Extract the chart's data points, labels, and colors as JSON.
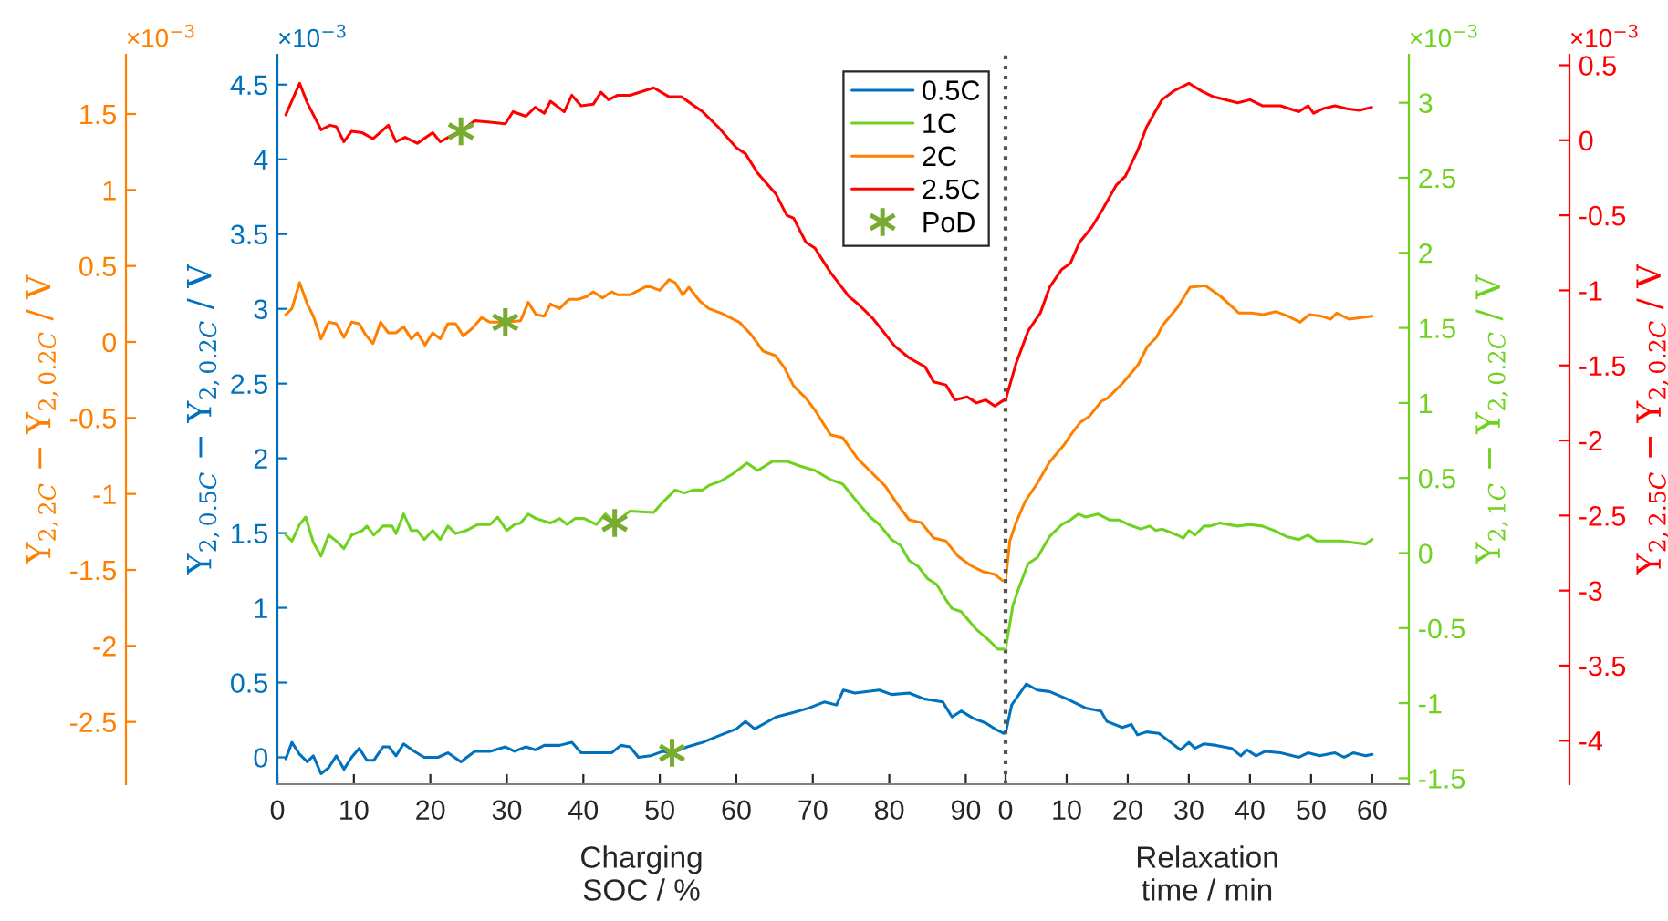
{
  "chart_data": [
    {
      "type": "line",
      "xlabel": "Charging\nSOC / %",
      "xlim": [
        0,
        95.2
      ],
      "xticks": [
        0,
        10,
        20,
        30,
        40,
        50,
        60,
        70,
        80,
        90
      ],
      "ylabel": "Y$_{2,0.5C}$ − Y$_{2,0.2C}$ / V",
      "ylim": [
        -0.18,
        4.7
      ],
      "yticks": [
        0,
        0.5,
        1,
        1.5,
        2,
        2.5,
        3,
        3.5,
        4,
        4.5
      ],
      "y2label": "Y$_{2,2C}$ − Y$_{2,0.2C}$ / V",
      "y2lim": [
        -2.91,
        1.89
      ],
      "y2ticks": [
        -2.5,
        -2,
        -1.5,
        -1,
        -0.5,
        0,
        0.5,
        1,
        1.5
      ],
      "line_style": "solid",
      "legend": "top right",
      "annotations": [
        "×10$^{−3}$",
        "×10$^{−3}$"
      ],
      "series": [
        {
          "name": "0.5C",
          "color": "#0072bd",
          "x": [
            1.1,
            1.9,
            2.9,
            3.9,
            4.7,
            5.7,
            6.7,
            7.7,
            8.7,
            9.7,
            10.7,
            11.7,
            12.6,
            13.8,
            14.6,
            15.5,
            16.5,
            17.9,
            19.2,
            21,
            22.3,
            24,
            25.8,
            27.8,
            29.8,
            31,
            32.5,
            33.7,
            34.9,
            36.9,
            38.5,
            39.7,
            41.7,
            43.7,
            44.9,
            46.1,
            47.2,
            48.8,
            50.4,
            51.6,
            53.6,
            55.6,
            58,
            60,
            61.2,
            62.4,
            65.2,
            67.5,
            69.5,
            71.5,
            73.1,
            74,
            75.5,
            78.7,
            80.3,
            82.6,
            84.6,
            87,
            88.2,
            89.4,
            91,
            92.6,
            93.8,
            95
          ],
          "values": [
            -0.01,
            0.1,
            0.02,
            -0.03,
            0.01,
            -0.11,
            -0.07,
            0.01,
            -0.08,
            0,
            0.06,
            -0.02,
            -0.02,
            0.07,
            0.07,
            0.01,
            0.09,
            0.04,
            0,
            0,
            0.03,
            -0.03,
            0.04,
            0.04,
            0.07,
            0.04,
            0.07,
            0.05,
            0.08,
            0.08,
            0.1,
            0.03,
            0.03,
            0.03,
            0.08,
            0.07,
            0,
            0.01,
            0.04,
            0.03,
            0.07,
            0.1,
            0.15,
            0.19,
            0.24,
            0.19,
            0.27,
            0.3,
            0.33,
            0.37,
            0.35,
            0.45,
            0.43,
            0.45,
            0.42,
            0.43,
            0.39,
            0.37,
            0.27,
            0.31,
            0.26,
            0.23,
            0.19,
            0.16
          ]
        },
        {
          "name": "2C",
          "color": "#ff8000",
          "axis": "y2",
          "x": [
            1.1,
            1.9,
            2.9,
            3.9,
            4.7,
            5.7,
            6.7,
            7.7,
            8.7,
            9.7,
            10.7,
            11.5,
            12.5,
            13.5,
            14.5,
            15.5,
            16.5,
            17.5,
            18.3,
            19.3,
            20.3,
            21.3,
            22.3,
            23.3,
            24.3,
            25.5,
            26.7,
            27.8,
            29.8,
            31.8,
            32.8,
            33.8,
            34.9,
            35.7,
            36.9,
            38.1,
            39.3,
            40.5,
            41.3,
            42.5,
            43.7,
            44.5,
            46.1,
            48.4,
            50,
            51.2,
            52,
            53,
            53.8,
            55.2,
            56.4,
            58,
            60.4,
            61.9,
            63.5,
            65.1,
            66.3,
            67.5,
            69.1,
            70.3,
            72.3,
            73.9,
            75.9,
            77.9,
            79.5,
            81.1,
            82.6,
            84.2,
            85.8,
            87.4,
            89,
            90.6,
            92.2,
            93.8,
            94.8
          ],
          "values": [
            0.18,
            0.22,
            0.39,
            0.25,
            0.17,
            0.02,
            0.13,
            0.12,
            0.03,
            0.13,
            0.12,
            0.05,
            -0.01,
            0.13,
            0.06,
            0.06,
            0.1,
            0.02,
            0.06,
            -0.02,
            0.06,
            0.02,
            0.12,
            0.12,
            0.04,
            0.09,
            0.16,
            0.13,
            0.13,
            0.14,
            0.26,
            0.18,
            0.17,
            0.25,
            0.22,
            0.28,
            0.28,
            0.3,
            0.33,
            0.29,
            0.33,
            0.31,
            0.31,
            0.37,
            0.34,
            0.41,
            0.39,
            0.31,
            0.36,
            0.27,
            0.22,
            0.19,
            0.13,
            0.05,
            -0.06,
            -0.09,
            -0.17,
            -0.29,
            -0.37,
            -0.45,
            -0.61,
            -0.63,
            -0.77,
            -0.87,
            -0.95,
            -1.07,
            -1.17,
            -1.19,
            -1.29,
            -1.31,
            -1.41,
            -1.47,
            -1.51,
            -1.53,
            -1.57
          ]
        },
        {
          "type": "scatter",
          "marker": "cross",
          "color": "#77ac30",
          "x": [
            51.6
          ],
          "values": [
            0.03
          ]
        },
        {
          "type": "scatter",
          "marker": "cross",
          "color": "#77ac30",
          "axis": "y2",
          "x": [
            29.8
          ],
          "values": [
            0.13
          ]
        }
      ]
    },
    {
      "type": "line",
      "xlim": [
        0,
        95.2
      ],
      "ylim": [
        -1.54,
        3.32
      ],
      "y2lim": [
        -4.29,
        0.57
      ],
      "tick_labels": false,
      "line_style": "solid",
      "legend": "top right",
      "series": [
        {
          "name": "1C",
          "color": "#6fd21f",
          "x": [
            1.1,
            1.9,
            2.9,
            3.7,
            4.7,
            5.7,
            6.7,
            7.7,
            8.7,
            9.7,
            11.1,
            11.7,
            12.6,
            13.8,
            15,
            15.5,
            16.5,
            17.5,
            18.3,
            19.2,
            20.3,
            21.3,
            22.3,
            23.3,
            24.7,
            26.2,
            27.8,
            28.8,
            30,
            31,
            31.8,
            32.8,
            33.8,
            35.7,
            36.9,
            37.9,
            38.9,
            40.1,
            41.7,
            42.9,
            44.1,
            46.1,
            49.2,
            50.4,
            52,
            53.2,
            54.4,
            55.6,
            56.4,
            58,
            59.6,
            61.4,
            62.8,
            64.7,
            66.7,
            68.3,
            70.3,
            72.3,
            73.9,
            75.5,
            77.5,
            78.7,
            80.3,
            81.5,
            82.6,
            83.8,
            85,
            86.2,
            87.4,
            88.2,
            89.4,
            91.4,
            93,
            94.2,
            95
          ],
          "values": [
            0.12,
            0.08,
            0.19,
            0.24,
            0.07,
            -0.02,
            0.12,
            0.08,
            0.03,
            0.12,
            0.15,
            0.18,
            0.12,
            0.18,
            0.18,
            0.13,
            0.26,
            0.15,
            0.15,
            0.09,
            0.15,
            0.09,
            0.18,
            0.13,
            0.15,
            0.19,
            0.19,
            0.24,
            0.15,
            0.19,
            0.2,
            0.26,
            0.23,
            0.2,
            0.23,
            0.19,
            0.23,
            0.23,
            0.19,
            0.26,
            0.2,
            0.28,
            0.27,
            0.34,
            0.42,
            0.4,
            0.42,
            0.42,
            0.45,
            0.48,
            0.53,
            0.6,
            0.55,
            0.61,
            0.61,
            0.58,
            0.55,
            0.49,
            0.46,
            0.36,
            0.24,
            0.19,
            0.09,
            0.05,
            -0.05,
            -0.09,
            -0.17,
            -0.21,
            -0.31,
            -0.37,
            -0.39,
            -0.51,
            -0.58,
            -0.64,
            -0.64
          ]
        },
        {
          "name": "2.5C",
          "color": "#ff0000",
          "axis": "y2",
          "x": [
            1.1,
            2.9,
            3.9,
            5.7,
            6.9,
            7.7,
            8.7,
            9.7,
            11.1,
            12.5,
            14.5,
            15.5,
            16.7,
            18.3,
            20.3,
            21.3,
            22.7,
            24,
            25.8,
            27.8,
            29.8,
            30.8,
            32.5,
            33.7,
            34.9,
            35.7,
            37.5,
            38.5,
            39.7,
            41.3,
            42.3,
            43.3,
            44.5,
            46.1,
            49.2,
            51.2,
            52.8,
            55.6,
            57.6,
            60,
            61.2,
            62.8,
            65.2,
            66.6,
            67.5,
            69.1,
            70.3,
            72.3,
            74.7,
            75.9,
            77.9,
            80.7,
            82.6,
            84.7,
            85.8,
            87.4,
            88.6,
            90.2,
            91.4,
            92.6,
            93.8,
            95
          ],
          "values": [
            0.17,
            0.38,
            0.25,
            0.07,
            0.1,
            0.09,
            -0.01,
            0.06,
            0.05,
            0.01,
            0.1,
            -0.01,
            0.02,
            -0.02,
            0.05,
            -0.01,
            0.03,
            0.06,
            0.13,
            0.12,
            0.11,
            0.19,
            0.16,
            0.22,
            0.18,
            0.26,
            0.19,
            0.3,
            0.23,
            0.24,
            0.32,
            0.27,
            0.3,
            0.3,
            0.35,
            0.29,
            0.29,
            0.19,
            0.09,
            -0.05,
            -0.09,
            -0.22,
            -0.36,
            -0.5,
            -0.52,
            -0.68,
            -0.72,
            -0.88,
            -1.04,
            -1.09,
            -1.19,
            -1.37,
            -1.45,
            -1.51,
            -1.61,
            -1.63,
            -1.73,
            -1.71,
            -1.75,
            -1.73,
            -1.77,
            -1.73
          ]
        },
        {
          "type": "scatter",
          "marker": "cross",
          "color": "#77ac30",
          "x": [
            44.1
          ],
          "values": [
            0.2
          ]
        },
        {
          "name": "PoD",
          "type": "scatter",
          "marker": "cross",
          "color": "#77ac30",
          "axis": "y2",
          "x": [
            24
          ],
          "values": [
            0.06
          ]
        }
      ]
    },
    {
      "type": "line",
      "xlim": [
        0,
        66
      ],
      "ylim": [
        -0.18,
        4.7
      ],
      "y2lim": [
        -2.91,
        1.89
      ],
      "tick_labels": false,
      "line_style": "solid",
      "series": [
        {
          "color": "#0072bd",
          "x": [
            0,
            1,
            3.4,
            5.2,
            7.2,
            10.1,
            13.1,
            15.6,
            16.6,
            19.1,
            20.6,
            21.6,
            23.1,
            25.1,
            28.6,
            30,
            31,
            32.5,
            34.5,
            37,
            38.5,
            39.5,
            41,
            42.5,
            45,
            48,
            49.5,
            51.4,
            53.9,
            55.4,
            56.9,
            58.9,
            60
          ],
          "values": [
            0.16,
            0.35,
            0.49,
            0.45,
            0.44,
            0.39,
            0.33,
            0.31,
            0.24,
            0.2,
            0.22,
            0.15,
            0.17,
            0.16,
            0.05,
            0.1,
            0.06,
            0.09,
            0.08,
            0.06,
            0.01,
            0.05,
            0.01,
            0.04,
            0.03,
            0,
            0.03,
            0.01,
            0.03,
            0,
            0.03,
            0.01,
            0.02
          ]
        },
        {
          "color": "#ff8000",
          "axis": "y2",
          "x": [
            0,
            0.7,
            1.7,
            3.2,
            5.2,
            7.2,
            9.7,
            10.7,
            12.2,
            13.7,
            15.7,
            16.7,
            19.2,
            21.7,
            23.2,
            24.7,
            25.7,
            28.2,
            30.2,
            32.7,
            35.2,
            38.2,
            40.2,
            42.2,
            44.2,
            46.2,
            48.2,
            49.7,
            51.7,
            53.2,
            54.2,
            56.2,
            58.2,
            60
          ],
          "values": [
            -1.57,
            -1.31,
            -1.19,
            -1.05,
            -0.93,
            -0.79,
            -0.67,
            -0.61,
            -0.53,
            -0.49,
            -0.39,
            -0.37,
            -0.27,
            -0.15,
            -0.03,
            0.03,
            0.11,
            0.23,
            0.36,
            0.37,
            0.3,
            0.19,
            0.19,
            0.18,
            0.2,
            0.17,
            0.13,
            0.18,
            0.17,
            0.15,
            0.19,
            0.15,
            0.16,
            0.17
          ]
        }
      ]
    },
    {
      "type": "line",
      "xlabel": "Relaxation\ntime / min",
      "xlim": [
        0,
        66
      ],
      "xticks": [
        0,
        10,
        20,
        30,
        40,
        50,
        60
      ],
      "ylabel": "Y$_{2,1C}$ − Y$_{2,0.2C}$ / V",
      "ylim": [
        -1.54,
        3.32
      ],
      "yticks": [
        -1.5,
        -1,
        -0.5,
        0,
        0.5,
        1,
        1.5,
        2,
        2.5,
        3
      ],
      "y2label": "Y$_{2,2.5C}$ − Y$_{2,0.2C}$ / V",
      "y2lim": [
        -4.29,
        0.57
      ],
      "y2ticks": [
        -4,
        -3.5,
        -3,
        -2.5,
        -2,
        -1.5,
        -1,
        -0.5,
        0,
        0.5
      ],
      "line_style": "solid",
      "annotations": [
        "×10$^{−3}$",
        "×10$^{−3}$"
      ],
      "ref_lines": [
        {
          "axis": "x",
          "value": 0,
          "line_style": "dotted",
          "color": "#555555"
        }
      ],
      "series": [
        {
          "color": "#6fd21f",
          "x": [
            0,
            1.2,
            2.2,
            3.7,
            5.2,
            7.2,
            9.2,
            10.6,
            11.9,
            13.1,
            15.1,
            17.1,
            18.6,
            20.1,
            22.1,
            23.6,
            24.6,
            25.6,
            28.1,
            29.1,
            30,
            31,
            32.5,
            33.5,
            35,
            38,
            40,
            42,
            44,
            46,
            48,
            49.5,
            50.9,
            52.9,
            54.9,
            56.9,
            58.9,
            60
          ],
          "values": [
            -0.64,
            -0.35,
            -0.23,
            -0.07,
            -0.03,
            0.11,
            0.19,
            0.22,
            0.26,
            0.24,
            0.26,
            0.22,
            0.22,
            0.19,
            0.16,
            0.18,
            0.15,
            0.16,
            0.12,
            0.1,
            0.15,
            0.12,
            0.18,
            0.18,
            0.2,
            0.18,
            0.19,
            0.18,
            0.15,
            0.11,
            0.09,
            0.12,
            0.08,
            0.08,
            0.08,
            0.07,
            0.06,
            0.09
          ]
        },
        {
          "color": "#ff0000",
          "axis": "y2",
          "x": [
            0,
            1.7,
            3.7,
            5.7,
            7.2,
            9.2,
            10.6,
            12.1,
            14.1,
            15.9,
            18.1,
            19.6,
            21.6,
            23.1,
            25.6,
            27.6,
            30,
            32,
            34,
            38,
            40,
            42,
            45,
            48,
            49.5,
            50.4,
            51.9,
            53.9,
            55.9,
            57.9,
            59.9
          ],
          "values": [
            -1.73,
            -1.49,
            -1.27,
            -1.15,
            -0.98,
            -0.86,
            -0.82,
            -0.68,
            -0.58,
            -0.46,
            -0.3,
            -0.24,
            -0.07,
            0.09,
            0.27,
            0.33,
            0.38,
            0.33,
            0.29,
            0.25,
            0.27,
            0.23,
            0.23,
            0.19,
            0.23,
            0.18,
            0.21,
            0.23,
            0.21,
            0.2,
            0.22
          ]
        }
      ]
    }
  ]
}
